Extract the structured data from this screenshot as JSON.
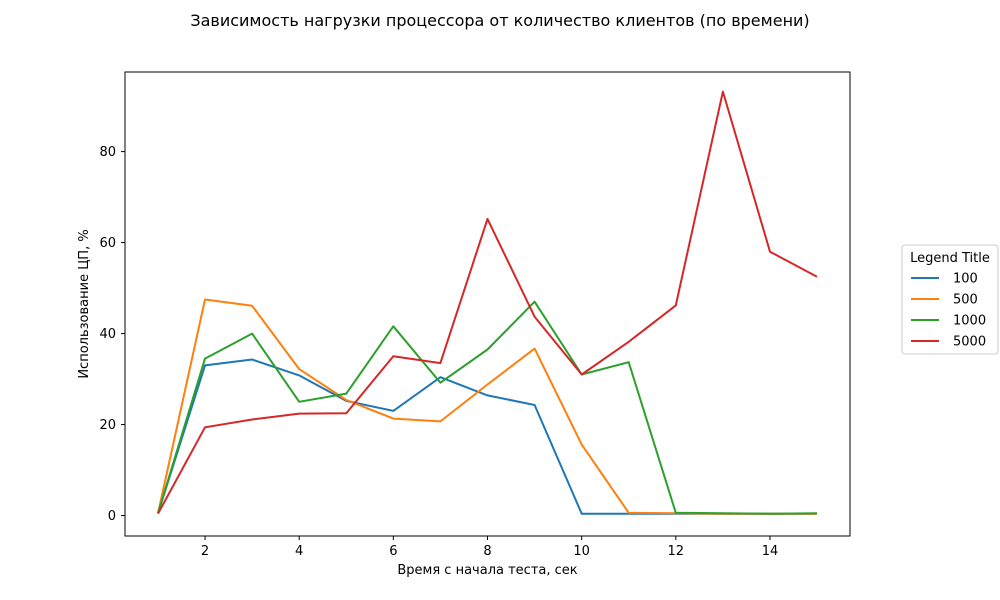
{
  "chart_data": {
    "type": "line",
    "title": "Зависимость нагрузки процессора от количество клиентов (по времени)",
    "xlabel": "Время с начала теста, сек",
    "ylabel": "Использование ЦП, %",
    "xlim": [
      0.3,
      15.7
    ],
    "ylim": [
      -4.5,
      97.5
    ],
    "xticks": [
      2,
      4,
      6,
      8,
      10,
      12,
      14
    ],
    "yticks": [
      0,
      20,
      40,
      60,
      80
    ],
    "grid": false,
    "legend": {
      "title": "Legend Title",
      "placement": "right, outside plot"
    },
    "x": [
      1,
      2,
      3,
      4,
      5,
      6,
      7,
      8,
      9,
      10,
      11,
      12,
      13,
      14,
      15
    ],
    "series": [
      {
        "name": "100",
        "color": "#1f77b4",
        "values": [
          0.5,
          33.0,
          34.3,
          30.8,
          25.2,
          23.0,
          30.4,
          26.4,
          24.3,
          0.4,
          0.4,
          0.4,
          0.4,
          0.4,
          0.4
        ]
      },
      {
        "name": "500",
        "color": "#ff7f0e",
        "values": [
          0.5,
          47.5,
          46.1,
          32.2,
          25.4,
          21.3,
          20.7,
          28.8,
          36.7,
          15.6,
          0.6,
          0.5,
          0.4,
          0.4,
          0.4
        ]
      },
      {
        "name": "1000",
        "color": "#2ca02c",
        "values": [
          0.5,
          34.5,
          40.0,
          25.0,
          26.8,
          41.6,
          29.2,
          36.5,
          47.0,
          31.0,
          33.7,
          0.6,
          0.5,
          0.4,
          0.5
        ]
      },
      {
        "name": "5000",
        "color": "#d62728",
        "values": [
          0.4,
          19.4,
          21.1,
          22.4,
          22.5,
          35.0,
          33.5,
          65.2,
          43.7,
          31.0,
          38.2,
          46.2,
          93.2,
          58.0,
          52.5
        ]
      }
    ]
  }
}
